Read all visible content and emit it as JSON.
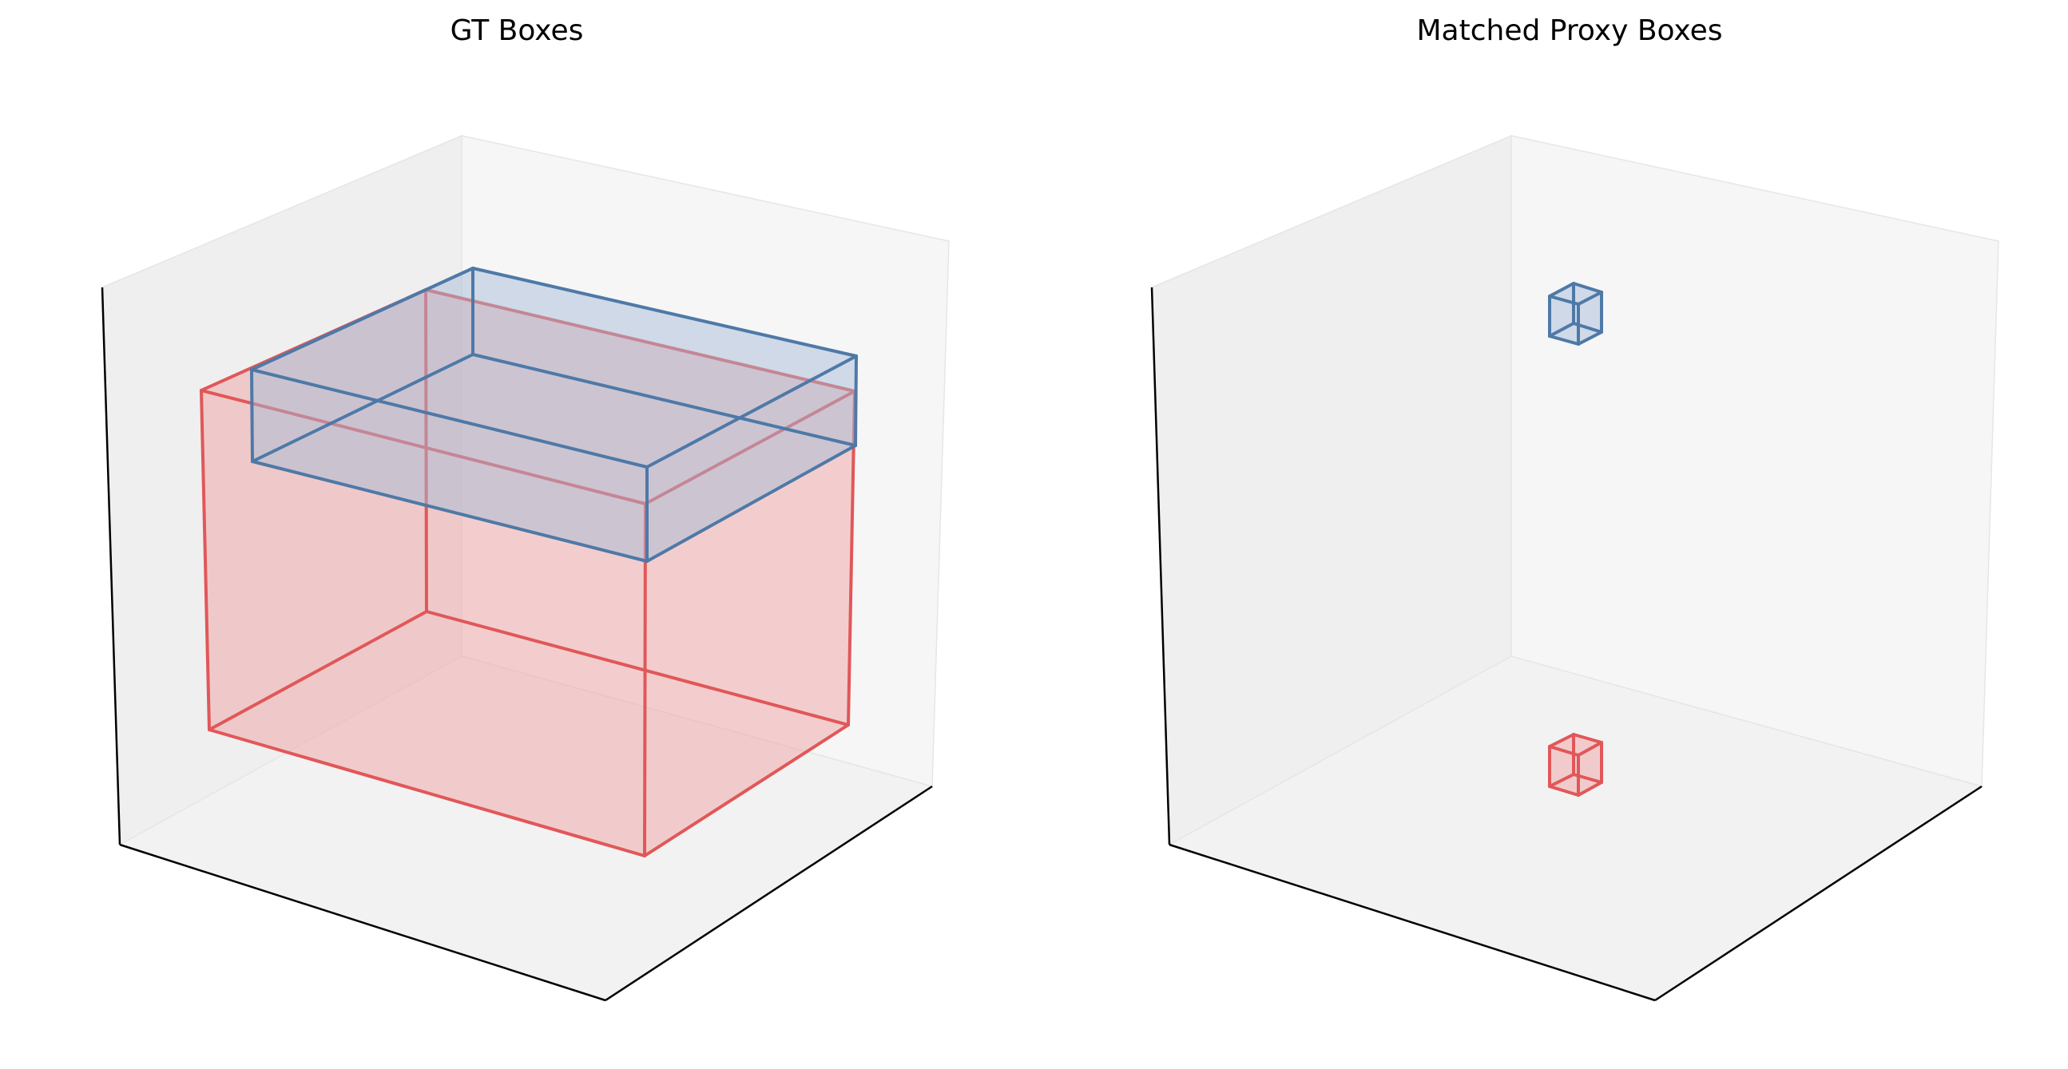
{
  "colors": {
    "red_edge": "#e15759",
    "red_fill": "#f0a1a2",
    "blue_edge": "#4e79a7",
    "blue_fill": "#a7bcd6",
    "pane_left": "#efefef",
    "pane_right": "#f6f6f6",
    "pane_floor": "#f2f2f2",
    "pane_edge": "#e6e6e6",
    "axis_line": "#000000"
  },
  "chart_data": [
    {
      "type": "3d-wireframe-boxes",
      "title": "GT Boxes",
      "boxes": [
        {
          "color": "red",
          "x": [
            0,
            1
          ],
          "y": [
            0,
            1
          ],
          "z": [
            0,
            1
          ]
        },
        {
          "color": "blue",
          "x": [
            0.12,
            1.1
          ],
          "y": [
            0,
            1
          ],
          "z": [
            0.72,
            1
          ]
        }
      ]
    },
    {
      "type": "3d-wireframe-boxes",
      "title": "Matched Proxy Boxes",
      "boxes": [
        {
          "color": "blue",
          "x": [
            0,
            0.06
          ],
          "y": [
            0,
            0.06
          ],
          "z": [
            0.9,
            0.96
          ]
        },
        {
          "color": "red",
          "x": [
            0,
            0.06
          ],
          "y": [
            0,
            0.06
          ],
          "z": [
            0.12,
            0.18
          ]
        }
      ]
    }
  ]
}
